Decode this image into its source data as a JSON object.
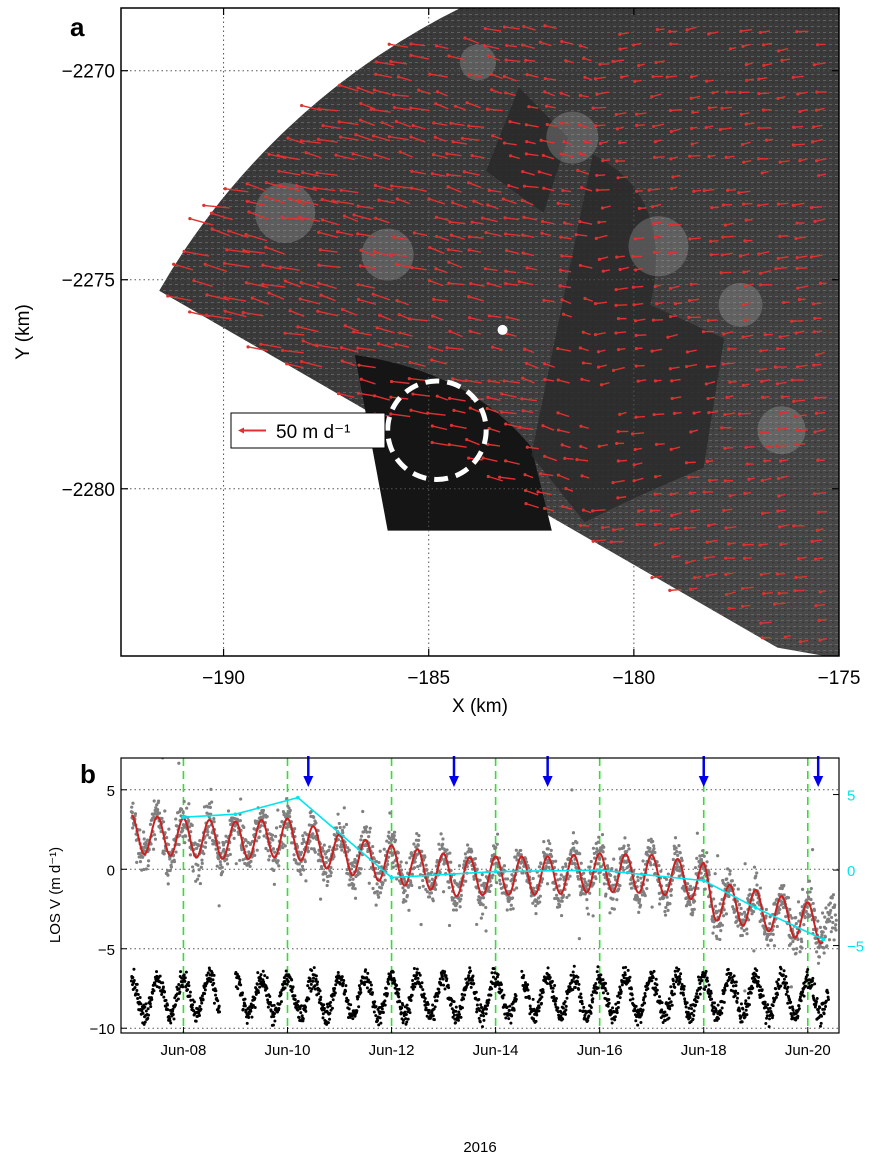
{
  "colors": {
    "vector": "#e03030",
    "fit": "#cc2020",
    "scatter": "#808080",
    "residual": "#000000",
    "cyan": "#00e5ee",
    "marker": "#0000ee",
    "event_line": "#33dd33",
    "grid": "#555555",
    "image_dark": "#2a2a2a"
  },
  "chart_data": [
    {
      "panel_label": "a",
      "type": "scatter",
      "title": "",
      "xlabel": "X (km)",
      "ylabel": "Y (km)",
      "xlim": [
        -192.5,
        -175
      ],
      "ylim": [
        -2284,
        -2268.5
      ],
      "xticks": [
        -190,
        -185,
        -180,
        -175
      ],
      "yticks": [
        -2270,
        -2275,
        -2280
      ],
      "xtick_labels": [
        "−190",
        "−185",
        "−180",
        "−175"
      ],
      "ytick_labels": [
        "−2270",
        "−2275",
        "−2280"
      ],
      "grid": true,
      "legend": {
        "label": "50 m d⁻¹",
        "placement": "left-middle",
        "scale_m_per_day": 50
      },
      "image": "radar velocity field over grayscale radar image",
      "radar_origin": [
        -176.5,
        -2283.8
      ],
      "velocity_direction": "northwest (toward upper-left)",
      "white_dot": [
        -183.2,
        -2276.2
      ],
      "dashed_circle_center": [
        -184.8,
        -2278.6
      ],
      "dashed_circle_radius_km": 1.2
    },
    {
      "panel_label": "b",
      "type": "line",
      "title": "",
      "xlabel": "2016",
      "ylabel": "LOS V (m d⁻¹)",
      "xlim": [
        6.8,
        20.6
      ],
      "ylim": [
        -10.3,
        7
      ],
      "yticks_left": [
        -10,
        -5,
        0,
        5
      ],
      "ytick_labels_left": [
        "−10",
        "−5",
        "0",
        "5"
      ],
      "yticks_right": [
        -5,
        0,
        5
      ],
      "ytick_labels_right": [
        "−5",
        "0",
        "5"
      ],
      "xticks": [
        8,
        10,
        12,
        14,
        16,
        18,
        20
      ],
      "xtick_labels": [
        "Jun-08",
        "Jun-10",
        "Jun-12",
        "Jun-14",
        "Jun-16",
        "Jun-18",
        "Jun-20"
      ],
      "grid": "horizontal dotted",
      "event_lines_day": [
        8,
        10,
        12,
        14,
        16,
        18,
        20
      ],
      "arrows_day": [
        10.4,
        13.2,
        15.0,
        18.0,
        20.2
      ],
      "series": [
        {
          "role": "smoothed LOS velocity with tidal fit",
          "trend_x": [
            7,
            8,
            9,
            10,
            10.5,
            11,
            12,
            13,
            13.2,
            14,
            15,
            16,
            17,
            18,
            18.2,
            19,
            20,
            20.3
          ],
          "trend_y": [
            2.2,
            2.0,
            1.8,
            2.0,
            1.5,
            1.0,
            0.3,
            -0.2,
            -0.5,
            -0.4,
            -0.4,
            -0.2,
            -0.3,
            -0.8,
            -2.0,
            -2.5,
            -3.3,
            -3.5
          ],
          "tidal_period_days": 0.5,
          "tidal_amplitude": 1.2
        },
        {
          "role": "cyan daily series",
          "x": [
            8,
            9,
            10.2,
            12,
            14,
            16,
            18,
            19,
            20.3
          ],
          "y": [
            3.5,
            3.7,
            4.8,
            -0.5,
            -0.1,
            0.0,
            -0.7,
            -2.5,
            -4.6
          ]
        },
        {
          "role": "residual (black) dots",
          "mean": -8.0,
          "amplitude": 1.2,
          "period_days": 0.5
        }
      ]
    }
  ]
}
